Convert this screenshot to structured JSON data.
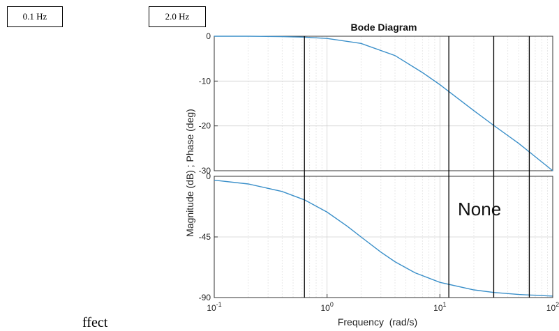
{
  "annotations": {
    "box_left": "0.1 Hz",
    "box_right": "2.0 Hz",
    "overlay_text": "None",
    "bottom_clipped_text": "ffect"
  },
  "chart_data": {
    "type": "line",
    "title": "Bode Diagram",
    "xlabel": "Frequency  (rad/s)",
    "ylabel": "Magnitude (dB) ; Phase (deg)",
    "x_scale": "log",
    "xlim": [
      0.1,
      100
    ],
    "x_ticks": [
      {
        "value": 0.1,
        "base": "10",
        "exp": "-1"
      },
      {
        "value": 1,
        "base": "10",
        "exp": "0"
      },
      {
        "value": 10,
        "base": "10",
        "exp": "1"
      },
      {
        "value": 100,
        "base": "10",
        "exp": "2"
      }
    ],
    "grid": true,
    "series_color": "#3a8fc9",
    "marker_lines_x": [
      0.63,
      12.0,
      30.0,
      62.0
    ],
    "panels": [
      {
        "ylim": [
          -30,
          0
        ],
        "y_ticks": [
          "0",
          "-10",
          "-20",
          "-30"
        ],
        "y_tick_values": [
          0,
          -10,
          -20,
          -30
        ],
        "x": [
          0.1,
          0.2,
          0.4,
          0.63,
          1.0,
          2.0,
          4.0,
          7.0,
          10.0,
          20.0,
          30.0,
          50.0,
          100.0
        ],
        "y": [
          0,
          0,
          -0.1,
          -0.2,
          -0.5,
          -1.6,
          -4.3,
          -8.1,
          -10.8,
          -16.6,
          -19.9,
          -23.9,
          -30.0
        ]
      },
      {
        "ylim": [
          -90,
          0
        ],
        "y_ticks": [
          "0",
          "-45",
          "-90"
        ],
        "y_tick_values": [
          0,
          -45,
          -90
        ],
        "x": [
          0.1,
          0.2,
          0.4,
          0.63,
          1.0,
          1.5,
          2.0,
          3.0,
          4.0,
          6.0,
          10.0,
          20.0,
          30.0,
          50.0,
          100.0
        ],
        "y": [
          -2.9,
          -5.7,
          -11.3,
          -17.5,
          -26.6,
          -36.9,
          -45.0,
          -56.3,
          -63.4,
          -71.6,
          -78.7,
          -84.3,
          -86.2,
          -87.7,
          -88.9
        ]
      }
    ]
  }
}
